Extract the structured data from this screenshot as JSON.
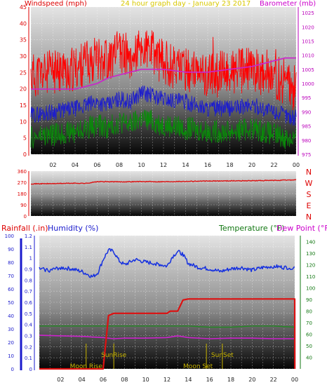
{
  "header": {
    "left_title": "Windspeed (mph)",
    "center_title": "24 hour graph day - January 23 2017",
    "right_title": "Barometer (mb)"
  },
  "bottom_header": {
    "rainfall": "Rainfall (.in)",
    "humidity": "Humidity (%)",
    "temperature": "Temperature (°F)",
    "dewpoint": "Dew Point (°F)"
  },
  "colors": {
    "wind_gust": "#ff0000",
    "wind_avg": "#1d1dcc",
    "wind_low": "#0a8a0a",
    "barometer": "#cc22cc",
    "direction": "#dd1111",
    "humidity": "#1530e0",
    "rain": "#dd1111",
    "temperature": "#228822",
    "dewpoint": "#cc22cc",
    "events": "#c8b400",
    "axis_red": "#dd0000",
    "axis_blue": "#1a1acc",
    "axis_green": "#117711",
    "axis_magenta": "#bb00bb"
  },
  "chart_data": [
    {
      "type": "line",
      "title": "24 hour graph day - January 23 2017",
      "x_ticks": [
        "02",
        "04",
        "06",
        "08",
        "10",
        "12",
        "14",
        "16",
        "18",
        "20",
        "22",
        "00"
      ],
      "left_axis": {
        "label": "Windspeed (mph)",
        "ticks": [
          "0",
          "5",
          "10",
          "15",
          "20",
          "25",
          "30",
          "35",
          "40",
          "45"
        ],
        "ylim": [
          0,
          45
        ]
      },
      "right_axis": {
        "label": "Barometer (mb)",
        "ticks": [
          "975",
          "980",
          "985",
          "990",
          "995",
          "1000",
          "1005",
          "1010",
          "1015",
          "1020",
          "1025"
        ],
        "ylim": [
          975,
          1027
        ]
      },
      "series": [
        {
          "role": "gust",
          "axis": "left",
          "x": [
            0,
            2,
            4,
            5,
            6,
            7,
            8,
            9,
            10,
            11,
            12,
            14,
            16,
            18,
            20,
            22,
            23,
            24
          ],
          "y": [
            24,
            25,
            26,
            28,
            30,
            29,
            31,
            30,
            32,
            31,
            28,
            26,
            24,
            25,
            26,
            24,
            22,
            20
          ]
        },
        {
          "role": "average",
          "axis": "left",
          "x": [
            0,
            2,
            4,
            5,
            6,
            7,
            8,
            9,
            10,
            11,
            12,
            14,
            16,
            18,
            20,
            22,
            23,
            24
          ],
          "y": [
            12,
            13,
            14,
            15,
            16,
            15,
            17,
            16,
            19,
            18,
            17,
            16,
            14,
            14,
            15,
            13,
            12,
            11
          ]
        },
        {
          "role": "low",
          "axis": "left",
          "x": [
            0,
            2,
            4,
            5,
            6,
            7,
            8,
            9,
            10,
            11,
            12,
            14,
            16,
            18,
            20,
            22,
            23,
            24
          ],
          "y": [
            5,
            6,
            7,
            8,
            9,
            8,
            10,
            9,
            11,
            10,
            9,
            8,
            7,
            7,
            8,
            6,
            5,
            5
          ]
        },
        {
          "role": "barometer",
          "axis": "right",
          "x": [
            0,
            2,
            4,
            5,
            6,
            7,
            8,
            9,
            10,
            11,
            12,
            14,
            16,
            18,
            20,
            22,
            23,
            24
          ],
          "y": [
            998,
            998,
            998,
            999,
            1000,
            1002,
            1003,
            1004,
            1005,
            1005,
            1005,
            1004,
            1004,
            1005,
            1006,
            1008,
            1009,
            1009
          ]
        }
      ]
    },
    {
      "type": "line",
      "y_ticks": [
        "0",
        "90",
        "180",
        "270",
        "360"
      ],
      "ylim": [
        0,
        360
      ],
      "compass_labels": [
        "N",
        "W",
        "S",
        "E",
        "N"
      ],
      "series": [
        {
          "role": "direction",
          "x": [
            0,
            2,
            4,
            5,
            6,
            7,
            8,
            10,
            12,
            14,
            16,
            18,
            20,
            22,
            24
          ],
          "y": [
            258,
            260,
            263,
            262,
            275,
            275,
            274,
            276,
            275,
            278,
            280,
            282,
            283,
            285,
            290
          ]
        }
      ]
    },
    {
      "type": "line",
      "x_ticks": [
        "02",
        "04",
        "06",
        "08",
        "10",
        "12",
        "14",
        "16",
        "18",
        "20",
        "22",
        "00"
      ],
      "rain_axis": {
        "label": "Rainfall (.in)",
        "ticks": [
          "0",
          "0.1",
          "0.2",
          "0.3",
          "0.4",
          "0.5",
          "0.6",
          "0.7",
          "0.8",
          "0.9",
          "1",
          "1.1",
          "1.2"
        ],
        "ylim": [
          0,
          1.2
        ]
      },
      "humidity_axis": {
        "label": "Humidity (%)",
        "ticks": [
          "0",
          "10",
          "20",
          "30",
          "40",
          "50",
          "60",
          "70",
          "80",
          "90",
          "100"
        ],
        "ylim": [
          0,
          100
        ]
      },
      "temp_axis": {
        "label": "Temperature (°F)",
        "ticks": [
          "40",
          "50",
          "60",
          "70",
          "80",
          "90",
          "100",
          "110",
          "120",
          "130",
          "140"
        ],
        "ylim": [
          30,
          145
        ]
      },
      "events": [
        {
          "label": "Moon Rise",
          "x": 4.4
        },
        {
          "label": "SunRise",
          "x": 7.0
        },
        {
          "label": "Moon Set",
          "x": 15.7
        },
        {
          "label": "SunSet",
          "x": 17.2
        }
      ],
      "series": [
        {
          "role": "humidity",
          "axis": "humidity",
          "x": [
            0,
            1,
            2,
            3,
            4,
            4.5,
            5,
            5.5,
            6,
            6.5,
            7,
            7.5,
            8,
            9,
            10,
            11,
            12,
            12.5,
            13,
            13.5,
            14,
            15,
            16,
            17,
            18,
            19,
            20,
            21,
            22,
            23,
            24
          ],
          "y": [
            75,
            74,
            76,
            75,
            73,
            71,
            69,
            72,
            82,
            89,
            88,
            81,
            78,
            82,
            80,
            79,
            77,
            84,
            88,
            86,
            79,
            76,
            75,
            73,
            75,
            76,
            74,
            76,
            77,
            76,
            76
          ]
        },
        {
          "role": "rain",
          "axis": "rain",
          "x": [
            0,
            6.0,
            6.5,
            7.0,
            12.0,
            12.3,
            13.0,
            13.5,
            14.0,
            24.0,
            24.01
          ],
          "y": [
            0,
            0,
            0.48,
            0.5,
            0.5,
            0.52,
            0.52,
            0.62,
            0.63,
            0.63,
            0
          ]
        },
        {
          "role": "temperature",
          "axis": "temp",
          "x": [
            0,
            2,
            4,
            6,
            8,
            10,
            12,
            14,
            16,
            18,
            20,
            22,
            24
          ],
          "y": [
            67,
            67,
            67,
            67,
            67,
            67,
            67,
            67,
            66,
            66,
            67,
            67,
            66
          ]
        },
        {
          "role": "dewpoint",
          "axis": "temp",
          "x": [
            0,
            2,
            4,
            6,
            7,
            8,
            10,
            12,
            13,
            14,
            16,
            18,
            20,
            22,
            24
          ],
          "y": [
            59,
            58.5,
            58,
            57,
            56,
            56.5,
            56.5,
            57,
            58.5,
            57,
            56,
            56.5,
            56.5,
            56,
            56
          ]
        }
      ]
    }
  ]
}
